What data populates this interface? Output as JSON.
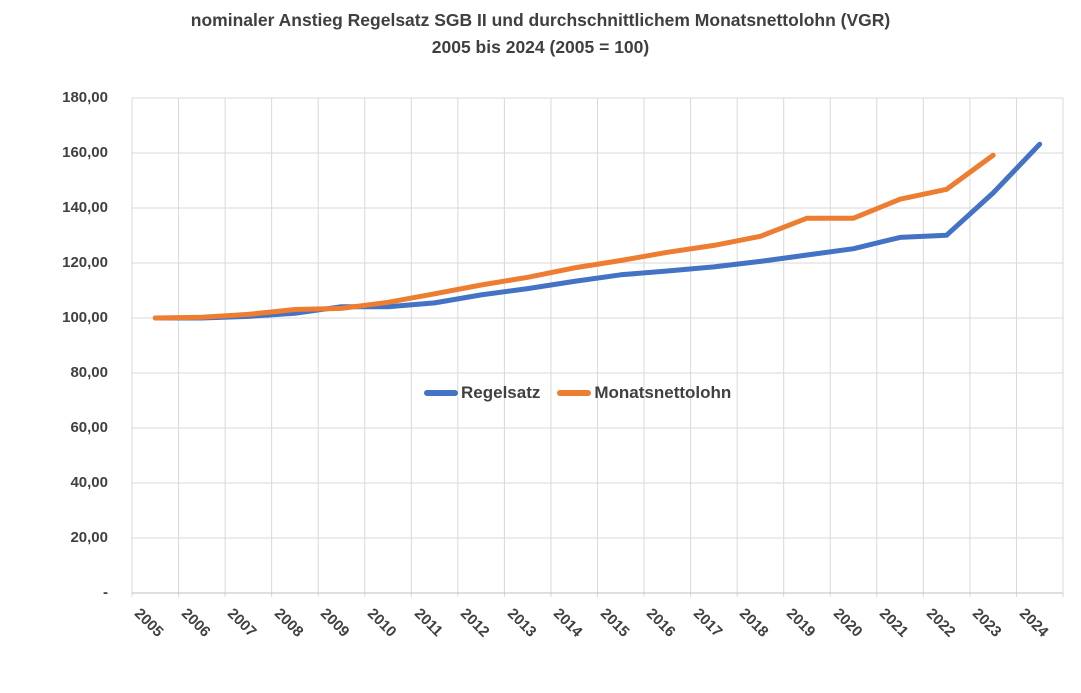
{
  "title": {
    "line1": "nominaler Anstieg Regelsatz SGB II und durchschnittlichem Monatsnettolohn (VGR)",
    "line2": "2005 bis 2024 (2005 = 100)"
  },
  "chart_data": {
    "type": "line",
    "title": "nominaler Anstieg Regelsatz SGB II und durchschnittlichem Monatsnettolohn (VGR)",
    "subtitle": "2005 bis 2024 (2005 = 100)",
    "categories": [
      "2005",
      "2006",
      "2007",
      "2008",
      "2009",
      "2010",
      "2011",
      "2012",
      "2013",
      "2014",
      "2015",
      "2016",
      "2017",
      "2018",
      "2019",
      "2020",
      "2021",
      "2022",
      "2023",
      "2024"
    ],
    "series": [
      {
        "id": "regelsatz",
        "name": "Regelsatz",
        "color": "#4472C4",
        "values": [
          100,
          100,
          100.6,
          101.7,
          104.1,
          104.1,
          105.5,
          108.4,
          110.7,
          113.3,
          115.7,
          117.1,
          118.6,
          120.6,
          122.9,
          125.2,
          129.3,
          130.1,
          145.5,
          163.2
        ]
      },
      {
        "id": "monatsnettolohn",
        "name": "Monatsnettolohn",
        "color": "#ED7D31",
        "values": [
          100,
          100.3,
          101.3,
          103.1,
          103.5,
          105.7,
          108.8,
          112.0,
          114.8,
          118.2,
          120.9,
          123.9,
          126.4,
          129.7,
          136.3,
          136.3,
          143.2,
          146.8,
          159.2,
          null
        ]
      }
    ],
    "ylim": [
      0,
      180
    ],
    "y_ticks": [
      {
        "value": 180,
        "label": "180,00"
      },
      {
        "value": 160,
        "label": "160,00"
      },
      {
        "value": 140,
        "label": "140,00"
      },
      {
        "value": 120,
        "label": "120,00"
      },
      {
        "value": 100,
        "label": "100,00"
      },
      {
        "value": 80,
        "label": "80,00"
      },
      {
        "value": 60,
        "label": "60,00"
      },
      {
        "value": 40,
        "label": "40,00"
      },
      {
        "value": 20,
        "label": "20,00"
      },
      {
        "value": 0,
        "label": "-"
      }
    ],
    "grid": "both",
    "legend_position": "inside-plot-center",
    "colors": {
      "gridline": "#D9D9D9",
      "axis_line": "#BFBFBF",
      "text": "#404040",
      "title_text": "#3F3F3F",
      "background": "#FFFFFF"
    }
  }
}
